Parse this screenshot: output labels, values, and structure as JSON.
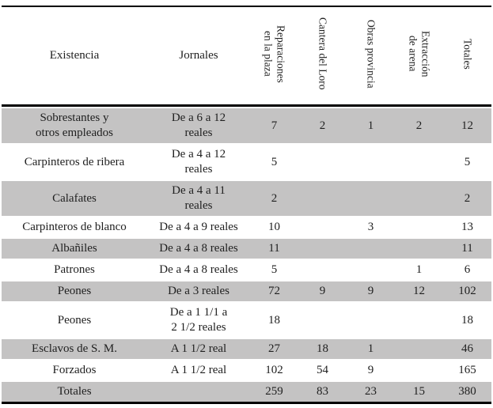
{
  "table": {
    "colors": {
      "row_shade": "#c4c3c3",
      "rule": "#000000",
      "text": "#1f1f1f"
    },
    "columns": [
      {
        "label": "Existencia",
        "rotated": false
      },
      {
        "label": "Jornales",
        "rotated": false
      },
      {
        "label": "Reparaciones\nen la plaza",
        "rotated": true
      },
      {
        "label": "Cantera del Loro",
        "rotated": true
      },
      {
        "label": "Obras provincia",
        "rotated": true
      },
      {
        "label": "Extracción\nde arena",
        "rotated": true
      },
      {
        "label": "Totales",
        "rotated": true
      }
    ],
    "rows": [
      {
        "existencia": "Sobrestantes y\notros empleados",
        "jornales": "De a 6 a 12\nreales",
        "values": [
          "7",
          "2",
          "1",
          "2",
          "12"
        ]
      },
      {
        "existencia": "Carpinteros de ribera",
        "jornales": "De a 4 a 12\nreales",
        "values": [
          "5",
          "",
          "",
          "",
          "5"
        ]
      },
      {
        "existencia": "Calafates",
        "jornales": "De a 4 a 11\nreales",
        "values": [
          "2",
          "",
          "",
          "",
          "2"
        ]
      },
      {
        "existencia": "Carpinteros de blanco",
        "jornales": "De a 4 a 9 reales",
        "values": [
          "10",
          "",
          "3",
          "",
          "13"
        ]
      },
      {
        "existencia": "Albañiles",
        "jornales": "De a 4 a 8 reales",
        "values": [
          "11",
          "",
          "",
          "",
          "11"
        ]
      },
      {
        "existencia": "Patrones",
        "jornales": "De a 4 a 8 reales",
        "values": [
          "5",
          "",
          "",
          "1",
          "6"
        ]
      },
      {
        "existencia": "Peones",
        "jornales": "De a 3 reales",
        "values": [
          "72",
          "9",
          "9",
          "12",
          "102"
        ]
      },
      {
        "existencia": "Peones",
        "jornales": "De a 1 1/1 a\n2 1/2 reales",
        "values": [
          "18",
          "",
          "",
          "",
          "18"
        ]
      },
      {
        "existencia": "Esclavos de S. M.",
        "jornales": "A 1 1/2 real",
        "values": [
          "27",
          "18",
          "1",
          "",
          "46"
        ]
      },
      {
        "existencia": "Forzados",
        "jornales": "A 1 1/2 real",
        "values": [
          "102",
          "54",
          "9",
          "",
          "165"
        ]
      },
      {
        "existencia": "Totales",
        "jornales": "",
        "values": [
          "259",
          "83",
          "23",
          "15",
          "380"
        ]
      }
    ]
  }
}
